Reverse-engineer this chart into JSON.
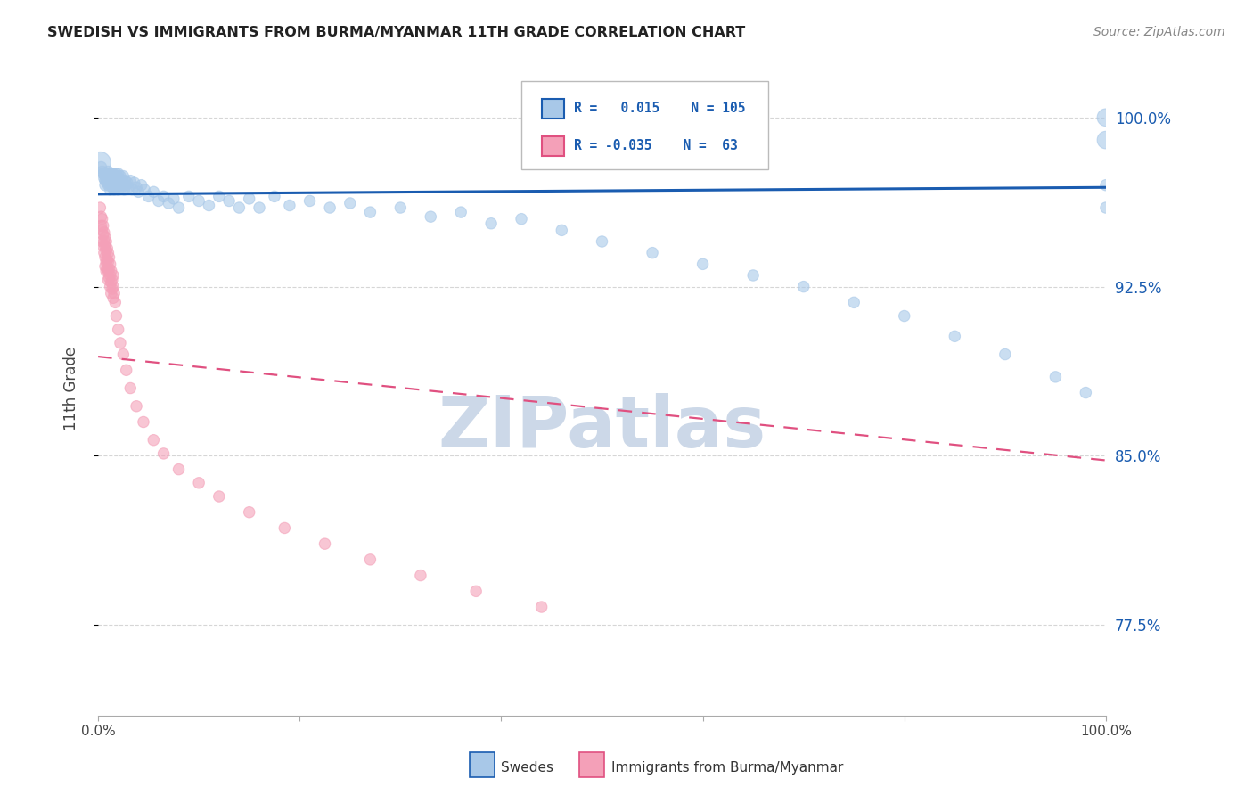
{
  "title": "SWEDISH VS IMMIGRANTS FROM BURMA/MYANMAR 11TH GRADE CORRELATION CHART",
  "source": "Source: ZipAtlas.com",
  "ylabel": "11th Grade",
  "blue_color": "#a8c8e8",
  "pink_color": "#f4a0b8",
  "blue_line_color": "#1a5cb0",
  "pink_line_color": "#e05080",
  "title_color": "#222222",
  "source_color": "#888888",
  "right_label_color": "#1a5cb0",
  "watermark_color": "#ccd8e8",
  "grid_color": "#cccccc",
  "blue_trend_x": [
    0.0,
    1.0
  ],
  "blue_trend_y": [
    0.966,
    0.969
  ],
  "pink_trend_x": [
    0.0,
    1.0
  ],
  "pink_trend_y": [
    0.894,
    0.848
  ],
  "xlim": [
    0.0,
    1.0
  ],
  "ylim": [
    0.735,
    1.025
  ],
  "yticks": [
    0.775,
    0.85,
    0.925,
    1.0
  ],
  "ytick_labels": [
    "77.5%",
    "85.0%",
    "92.5%",
    "100.0%"
  ],
  "xticks": [
    0.0,
    0.2,
    0.4,
    0.6,
    0.8,
    1.0
  ],
  "xtick_labels": [
    "0.0%",
    "",
    "",
    "",
    "",
    "100.0%"
  ],
  "swedes_x": [
    0.002,
    0.003,
    0.004,
    0.005,
    0.006,
    0.006,
    0.007,
    0.007,
    0.007,
    0.008,
    0.008,
    0.009,
    0.009,
    0.01,
    0.01,
    0.01,
    0.011,
    0.011,
    0.012,
    0.012,
    0.012,
    0.013,
    0.013,
    0.014,
    0.014,
    0.014,
    0.015,
    0.015,
    0.015,
    0.016,
    0.016,
    0.016,
    0.017,
    0.017,
    0.018,
    0.018,
    0.018,
    0.019,
    0.019,
    0.02,
    0.02,
    0.02,
    0.021,
    0.021,
    0.022,
    0.022,
    0.023,
    0.023,
    0.024,
    0.025,
    0.025,
    0.026,
    0.027,
    0.028,
    0.029,
    0.03,
    0.032,
    0.034,
    0.036,
    0.038,
    0.04,
    0.043,
    0.046,
    0.05,
    0.055,
    0.06,
    0.065,
    0.07,
    0.075,
    0.08,
    0.09,
    0.1,
    0.11,
    0.12,
    0.13,
    0.14,
    0.15,
    0.16,
    0.175,
    0.19,
    0.21,
    0.23,
    0.25,
    0.27,
    0.3,
    0.33,
    0.36,
    0.39,
    0.42,
    0.46,
    0.5,
    0.55,
    0.6,
    0.65,
    0.7,
    0.75,
    0.8,
    0.85,
    0.9,
    0.95,
    0.98,
    1.0,
    1.0,
    1.0,
    1.0
  ],
  "swedes_y": [
    0.98,
    0.978,
    0.976,
    0.975,
    0.975,
    0.973,
    0.974,
    0.972,
    0.97,
    0.975,
    0.972,
    0.974,
    0.971,
    0.976,
    0.973,
    0.97,
    0.975,
    0.972,
    0.974,
    0.971,
    0.968,
    0.975,
    0.973,
    0.974,
    0.971,
    0.969,
    0.975,
    0.972,
    0.969,
    0.974,
    0.971,
    0.968,
    0.973,
    0.97,
    0.975,
    0.972,
    0.969,
    0.974,
    0.971,
    0.975,
    0.972,
    0.968,
    0.973,
    0.97,
    0.974,
    0.971,
    0.972,
    0.969,
    0.97,
    0.974,
    0.971,
    0.968,
    0.972,
    0.97,
    0.971,
    0.969,
    0.972,
    0.968,
    0.971,
    0.969,
    0.967,
    0.97,
    0.968,
    0.965,
    0.967,
    0.963,
    0.965,
    0.962,
    0.964,
    0.96,
    0.965,
    0.963,
    0.961,
    0.965,
    0.963,
    0.96,
    0.964,
    0.96,
    0.965,
    0.961,
    0.963,
    0.96,
    0.962,
    0.958,
    0.96,
    0.956,
    0.958,
    0.953,
    0.955,
    0.95,
    0.945,
    0.94,
    0.935,
    0.93,
    0.925,
    0.918,
    0.912,
    0.903,
    0.895,
    0.885,
    0.878,
    0.99,
    0.97,
    0.96,
    1.0
  ],
  "swedes_s": [
    300,
    80,
    80,
    80,
    80,
    80,
    80,
    80,
    80,
    80,
    80,
    80,
    80,
    80,
    80,
    80,
    80,
    80,
    80,
    80,
    80,
    80,
    80,
    80,
    80,
    80,
    80,
    80,
    80,
    80,
    80,
    80,
    80,
    80,
    80,
    80,
    80,
    80,
    80,
    80,
    80,
    80,
    80,
    80,
    80,
    80,
    80,
    80,
    80,
    80,
    80,
    80,
    80,
    80,
    80,
    80,
    80,
    80,
    80,
    80,
    80,
    80,
    80,
    80,
    80,
    80,
    80,
    80,
    80,
    80,
    80,
    80,
    80,
    80,
    80,
    80,
    80,
    80,
    80,
    80,
    80,
    80,
    80,
    80,
    80,
    80,
    80,
    80,
    80,
    80,
    80,
    80,
    80,
    80,
    80,
    80,
    80,
    80,
    80,
    80,
    80,
    200,
    80,
    80,
    200
  ],
  "burma_x": [
    0.002,
    0.003,
    0.003,
    0.004,
    0.004,
    0.004,
    0.005,
    0.005,
    0.005,
    0.006,
    0.006,
    0.006,
    0.007,
    0.007,
    0.007,
    0.007,
    0.008,
    0.008,
    0.008,
    0.008,
    0.009,
    0.009,
    0.009,
    0.01,
    0.01,
    0.01,
    0.01,
    0.011,
    0.011,
    0.011,
    0.012,
    0.012,
    0.012,
    0.013,
    0.013,
    0.013,
    0.014,
    0.014,
    0.015,
    0.015,
    0.015,
    0.016,
    0.017,
    0.018,
    0.02,
    0.022,
    0.025,
    0.028,
    0.032,
    0.038,
    0.045,
    0.055,
    0.065,
    0.08,
    0.1,
    0.12,
    0.15,
    0.185,
    0.225,
    0.27,
    0.32,
    0.375,
    0.44
  ],
  "burma_y": [
    0.96,
    0.956,
    0.952,
    0.955,
    0.95,
    0.945,
    0.952,
    0.948,
    0.943,
    0.949,
    0.945,
    0.94,
    0.947,
    0.943,
    0.938,
    0.934,
    0.945,
    0.941,
    0.936,
    0.932,
    0.942,
    0.937,
    0.933,
    0.94,
    0.936,
    0.932,
    0.928,
    0.938,
    0.933,
    0.929,
    0.935,
    0.93,
    0.925,
    0.932,
    0.927,
    0.922,
    0.928,
    0.924,
    0.93,
    0.925,
    0.92,
    0.922,
    0.918,
    0.912,
    0.906,
    0.9,
    0.895,
    0.888,
    0.88,
    0.872,
    0.865,
    0.857,
    0.851,
    0.844,
    0.838,
    0.832,
    0.825,
    0.818,
    0.811,
    0.804,
    0.797,
    0.79,
    0.783
  ],
  "burma_s": [
    80,
    80,
    80,
    80,
    80,
    80,
    80,
    80,
    80,
    80,
    80,
    80,
    80,
    80,
    80,
    80,
    80,
    80,
    80,
    80,
    80,
    80,
    80,
    80,
    80,
    80,
    80,
    80,
    80,
    80,
    80,
    80,
    80,
    80,
    80,
    80,
    80,
    80,
    80,
    80,
    80,
    80,
    80,
    80,
    80,
    80,
    80,
    80,
    80,
    80,
    80,
    80,
    80,
    80,
    80,
    80,
    80,
    80,
    80,
    80,
    80,
    80,
    80
  ]
}
